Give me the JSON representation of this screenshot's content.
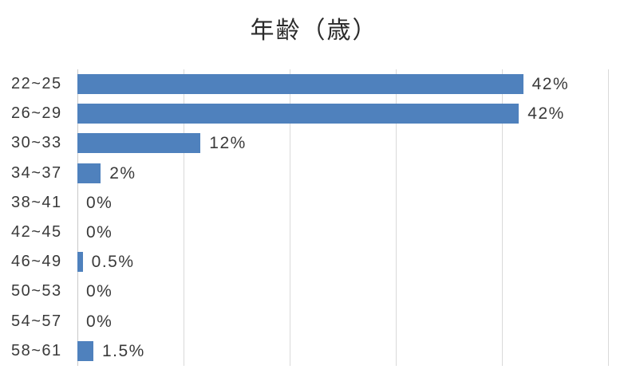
{
  "chart_data": {
    "type": "bar",
    "orientation": "horizontal",
    "title": "年齢（歳）",
    "categories": [
      "22~25",
      "26~29",
      "30~33",
      "34~37",
      "38~41",
      "42~45",
      "46~49",
      "50~53",
      "54~57",
      "58~61"
    ],
    "values": [
      42,
      41.6,
      11.6,
      2.2,
      0,
      0,
      0.5,
      0,
      0,
      1.5
    ],
    "data_labels": [
      "42%",
      "42%",
      "12%",
      "2%",
      "0%",
      "0%",
      "0.5%",
      "0%",
      "0%",
      "1.5%"
    ],
    "xlabel": "",
    "ylabel": "",
    "xlim": [
      0,
      50
    ],
    "gridline_step": 10,
    "grid": "vertical-only",
    "legend": "none",
    "colors": {
      "bar": "#4f81bd",
      "gridline": "#d9d9d9",
      "axis_line": "#c9c9c9",
      "text": "#3a3a3a",
      "title": "#2b2b2b",
      "background": "#ffffff"
    }
  }
}
